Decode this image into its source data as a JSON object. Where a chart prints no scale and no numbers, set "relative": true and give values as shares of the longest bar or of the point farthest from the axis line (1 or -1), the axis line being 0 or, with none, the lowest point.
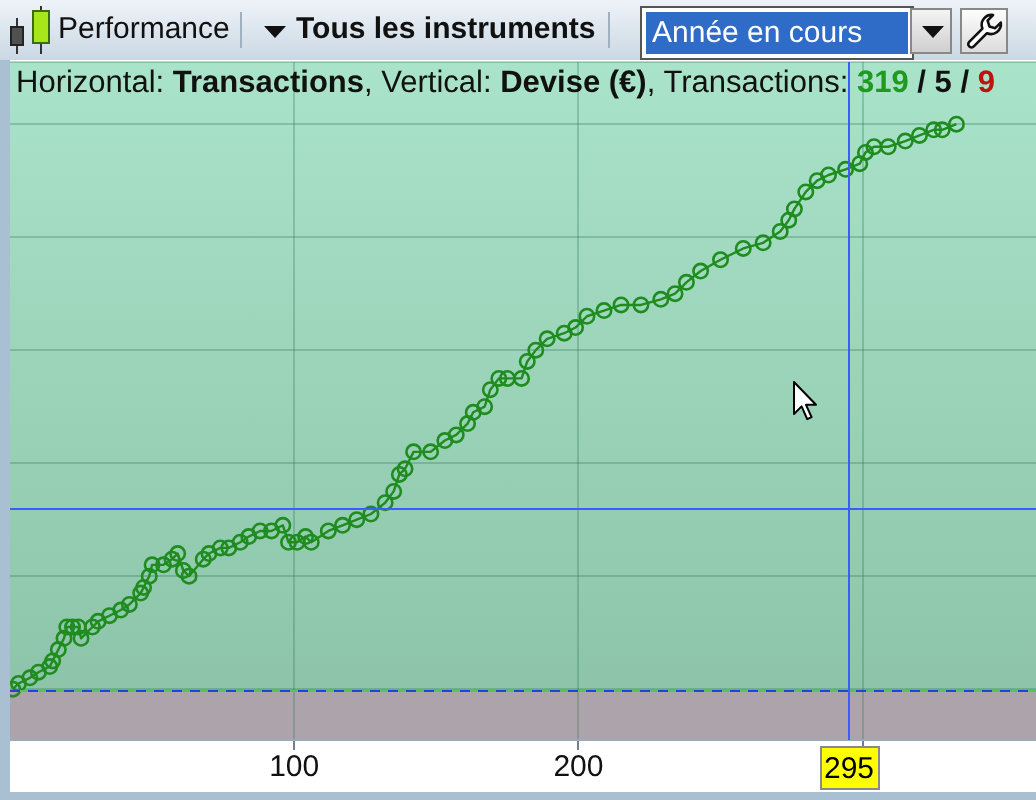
{
  "chart_data": {
    "type": "line",
    "title": "Performance",
    "subtitle": "Horizontal: Transactions, Vertical: Devise (€), Transactions: 319 / 5 / 9",
    "annotations": [
      "Tous les instruments",
      "Année en cours"
    ],
    "relative": true,
    "color": "#1f8c1f",
    "marker": "circle",
    "line_style": "solid",
    "grid": true,
    "x": [
      1,
      3,
      7,
      10,
      14,
      15,
      17,
      19,
      20,
      22,
      24,
      25,
      29,
      31,
      35,
      39,
      42,
      46,
      47,
      49,
      50,
      54,
      57,
      59,
      61,
      63,
      68,
      70,
      74,
      77,
      81,
      84,
      88,
      92,
      96,
      98,
      101,
      104,
      106,
      112,
      117,
      122,
      127,
      132,
      135,
      137,
      139,
      142,
      148,
      153,
      157,
      161,
      163,
      167,
      169,
      172,
      175,
      180,
      182,
      185,
      189,
      195,
      199,
      203,
      209,
      215,
      222,
      229,
      234,
      238,
      243,
      250,
      258,
      265,
      271,
      274,
      276,
      280,
      284,
      288,
      294,
      299,
      301,
      304,
      309,
      315,
      320,
      325,
      328,
      333
    ],
    "values": [
      0.0,
      0.01,
      0.02,
      0.03,
      0.04,
      0.05,
      0.07,
      0.09,
      0.11,
      0.11,
      0.11,
      0.09,
      0.11,
      0.12,
      0.13,
      0.14,
      0.15,
      0.17,
      0.18,
      0.2,
      0.22,
      0.22,
      0.23,
      0.24,
      0.21,
      0.2,
      0.23,
      0.24,
      0.25,
      0.25,
      0.26,
      0.27,
      0.28,
      0.28,
      0.29,
      0.26,
      0.26,
      0.27,
      0.26,
      0.28,
      0.29,
      0.3,
      0.31,
      0.33,
      0.35,
      0.38,
      0.39,
      0.42,
      0.42,
      0.44,
      0.45,
      0.47,
      0.49,
      0.5,
      0.53,
      0.55,
      0.55,
      0.55,
      0.58,
      0.6,
      0.62,
      0.63,
      0.64,
      0.66,
      0.67,
      0.68,
      0.68,
      0.69,
      0.7,
      0.72,
      0.74,
      0.76,
      0.78,
      0.79,
      0.81,
      0.83,
      0.85,
      0.88,
      0.9,
      0.91,
      0.92,
      0.93,
      0.95,
      0.96,
      0.96,
      0.97,
      0.98,
      0.99,
      0.99,
      1
    ],
    "xlim": [
      0,
      361
    ],
    "xticks": [
      100,
      200,
      {
        "value": 300,
        "label": null
      }
    ],
    "ref_lines": [
      {
        "axis": "x",
        "value": 295,
        "label": "295",
        "color": "#3d5cff"
      },
      {
        "axis": "y",
        "value": 0.32,
        "color": "#3d5cff"
      }
    ]
  }
}
